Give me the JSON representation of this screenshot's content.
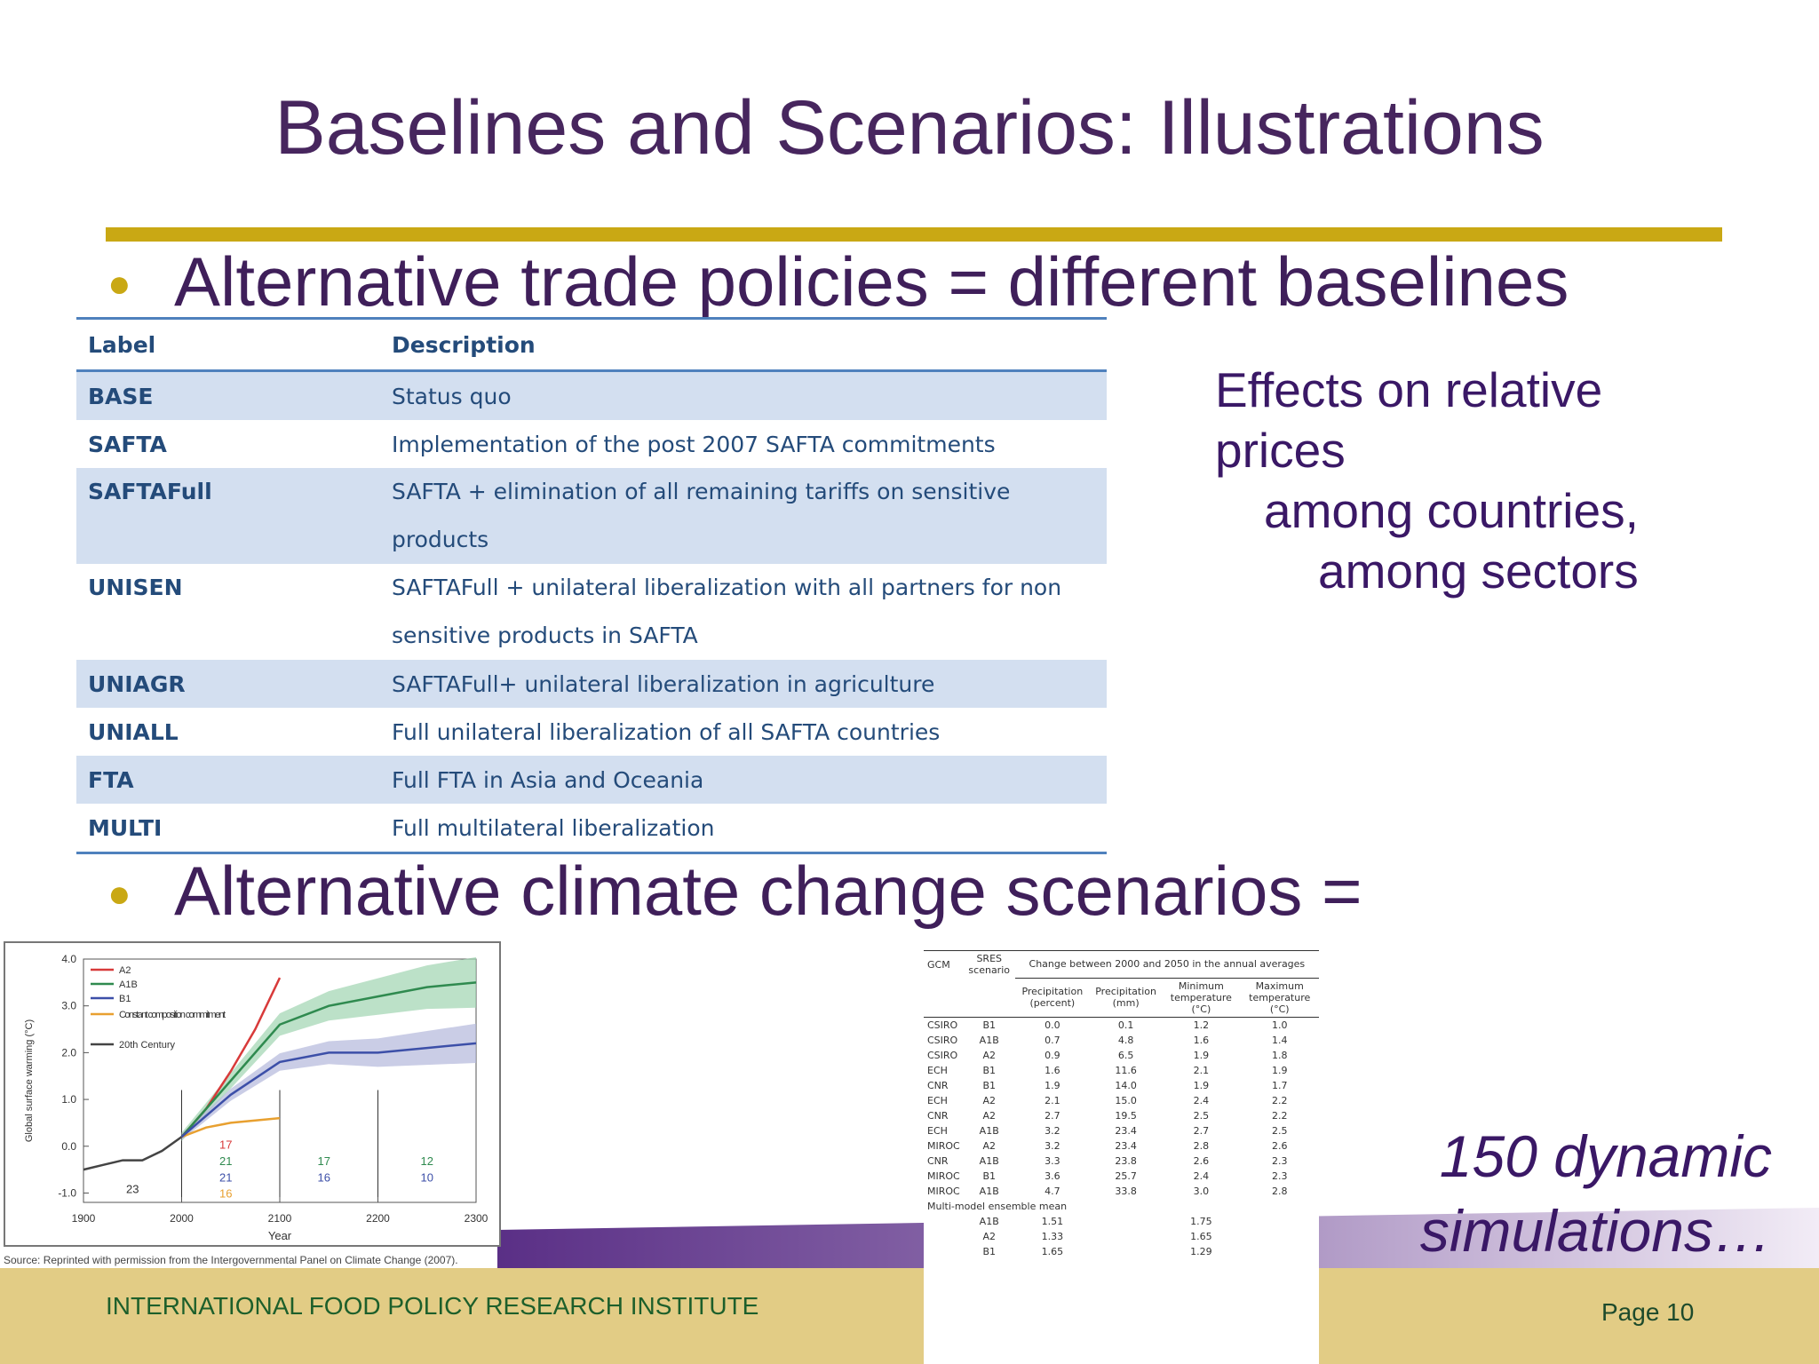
{
  "slide": {
    "title": "Baselines and Scenarios: Illustrations",
    "bullet1": "Alternative trade policies = different baselines",
    "bullet2": "Alternative climate change scenarios =",
    "effects_lines": [
      "Effects on relative",
      "prices",
      "among countries,",
      "among sectors"
    ],
    "simulations_lines": [
      "150 dynamic",
      "simulations…"
    ],
    "footer": "INTERNATIONAL FOOD POLICY RESEARCH INSTITUTE",
    "page": "Page 10",
    "colors": {
      "title": "#47265e",
      "accent_rule": "#c9a814",
      "table_text": "#244b7a",
      "table_shade": "#d3dff0",
      "footer_band": "#e2cc85"
    }
  },
  "policy_table": {
    "headers": [
      "Label",
      "Description"
    ],
    "rows": [
      {
        "label": "BASE",
        "desc": "Status quo"
      },
      {
        "label": "SAFTA",
        "desc": "Implementation of the post 2007 SAFTA commitments"
      },
      {
        "label": "SAFTAFull",
        "desc": "SAFTA + elimination of all remaining tariffs on sensitive products"
      },
      {
        "label": "UNISEN",
        "desc": "SAFTAFull + unilateral liberalization with all partners for non sensitive products in SAFTA"
      },
      {
        "label": "UNIAGR",
        "desc": "SAFTAFull+ unilateral liberalization in agriculture"
      },
      {
        "label": "UNIALL",
        "desc": "Full unilateral liberalization of all SAFTA countries"
      },
      {
        "label": "FTA",
        "desc": "Full FTA in Asia and Oceania"
      },
      {
        "label": "MULTI",
        "desc": "Full multilateral liberalization"
      }
    ]
  },
  "chart_data": {
    "type": "line",
    "ylabel": "Global surface warming (°C)",
    "xlabel": "Year",
    "x_ticks": [
      "1900",
      "2000",
      "2100",
      "2200",
      "2300"
    ],
    "y_ticks": [
      "4.0",
      "3.0",
      "2.0",
      "1.0",
      "0.0",
      "-1.0"
    ],
    "xlim": [
      1900,
      2300
    ],
    "ylim": [
      -1.2,
      4.0
    ],
    "legend": [
      "A2",
      "A1B",
      "B1",
      "Constant composition commitment",
      "20th Century"
    ],
    "legend_position": "top-left",
    "series": [
      {
        "name": "20th Century",
        "color": "#444444",
        "x": [
          1900,
          1920,
          1940,
          1960,
          1980,
          2000
        ],
        "y": [
          -0.5,
          -0.4,
          -0.3,
          -0.3,
          -0.1,
          0.2
        ]
      },
      {
        "name": "Constant composition commitment",
        "color": "#e8a030",
        "x": [
          2000,
          2025,
          2050,
          2075,
          2100
        ],
        "y": [
          0.2,
          0.4,
          0.5,
          0.55,
          0.6
        ]
      },
      {
        "name": "A2",
        "color": "#d83a3a",
        "x": [
          2000,
          2025,
          2050,
          2075,
          2100
        ],
        "y": [
          0.2,
          0.8,
          1.6,
          2.5,
          3.6
        ]
      },
      {
        "name": "A1B",
        "color": "#2f8a4f",
        "x": [
          2000,
          2050,
          2100,
          2150,
          2200,
          2250,
          2300
        ],
        "y": [
          0.2,
          1.4,
          2.6,
          3.0,
          3.2,
          3.4,
          3.5
        ]
      },
      {
        "name": "B1",
        "color": "#3c4fa8",
        "x": [
          2000,
          2050,
          2100,
          2150,
          2200,
          2250,
          2300
        ],
        "y": [
          0.2,
          1.1,
          1.8,
          2.0,
          2.0,
          2.1,
          2.2
        ]
      }
    ],
    "annotations": [
      {
        "text": "23",
        "color": "#333333",
        "x": 1950,
        "y": -1.0
      },
      {
        "text": "17",
        "color": "#d83a3a",
        "x": 2045,
        "y": -0.05
      },
      {
        "text": "21",
        "color": "#2f8a4f",
        "x": 2045,
        "y": -0.4
      },
      {
        "text": "21",
        "color": "#3c4fa8",
        "x": 2045,
        "y": -0.75
      },
      {
        "text": "16",
        "color": "#e8a030",
        "x": 2045,
        "y": -1.1
      },
      {
        "text": "17",
        "color": "#2f8a4f",
        "x": 2145,
        "y": -0.4
      },
      {
        "text": "16",
        "color": "#3c4fa8",
        "x": 2145,
        "y": -0.75
      },
      {
        "text": "12",
        "color": "#2f8a4f",
        "x": 2250,
        "y": -0.4
      },
      {
        "text": "10",
        "color": "#3c4fa8",
        "x": 2250,
        "y": -0.75
      }
    ],
    "source": "Source:  Reprinted with permission from the Intergovernmental Panel on Climate Change (2007)."
  },
  "climate_table": {
    "head_gcm": "GCM",
    "head_sres": "SRES scenario",
    "head_change": "Change between 2000 and 2050 in the annual averages",
    "subheads": [
      "Precipitation (percent)",
      "Precipitation (mm)",
      "Minimum temperature (°C)",
      "Maximum temperature (°C)"
    ],
    "rows": [
      [
        "CSIRO",
        "B1",
        "0.0",
        "0.1",
        "1.2",
        "1.0"
      ],
      [
        "CSIRO",
        "A1B",
        "0.7",
        "4.8",
        "1.6",
        "1.4"
      ],
      [
        "CSIRO",
        "A2",
        "0.9",
        "6.5",
        "1.9",
        "1.8"
      ],
      [
        "ECH",
        "B1",
        "1.6",
        "11.6",
        "2.1",
        "1.9"
      ],
      [
        "CNR",
        "B1",
        "1.9",
        "14.0",
        "1.9",
        "1.7"
      ],
      [
        "ECH",
        "A2",
        "2.1",
        "15.0",
        "2.4",
        "2.2"
      ],
      [
        "CNR",
        "A2",
        "2.7",
        "19.5",
        "2.5",
        "2.2"
      ],
      [
        "ECH",
        "A1B",
        "3.2",
        "23.4",
        "2.7",
        "2.5"
      ],
      [
        "MIROC",
        "A2",
        "3.2",
        "23.4",
        "2.8",
        "2.6"
      ],
      [
        "CNR",
        "A1B",
        "3.3",
        "23.8",
        "2.6",
        "2.3"
      ],
      [
        "MIROC",
        "B1",
        "3.6",
        "25.7",
        "2.4",
        "2.3"
      ],
      [
        "MIROC",
        "A1B",
        "4.7",
        "33.8",
        "3.0",
        "2.8"
      ]
    ],
    "ensemble_label": "Multi-model ensemble mean",
    "ensemble_rows": [
      [
        "",
        "A1B",
        "1.51",
        "",
        "1.75",
        ""
      ],
      [
        "",
        "A2",
        "1.33",
        "",
        "1.65",
        ""
      ],
      [
        "",
        "B1",
        "1.65",
        "",
        "1.29",
        ""
      ]
    ]
  }
}
